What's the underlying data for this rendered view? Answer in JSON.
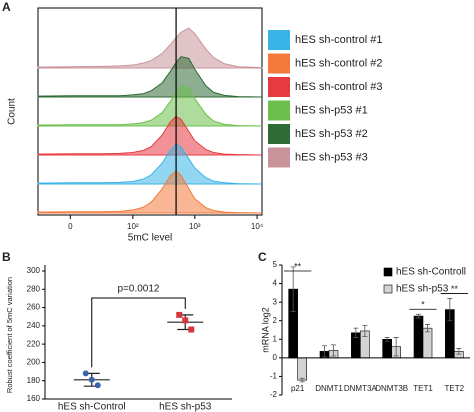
{
  "chart_data": [
    {
      "panel": "A",
      "type": "ridgeline",
      "xlabel": "5mC level",
      "ylabel": "Count",
      "xscale": "biexponential",
      "xlim": [
        -30,
        12000
      ],
      "xticks": [
        0,
        {
          "value": 100,
          "label": "10²"
        },
        {
          "value": 1000,
          "label": "10³"
        },
        {
          "value": 10000,
          "label": "10⁴"
        }
      ],
      "reference_x": 500,
      "x": [
        -30,
        0,
        30,
        60,
        100,
        150,
        200,
        300,
        400,
        500,
        600,
        800,
        1000,
        1500,
        2000,
        3000,
        5000,
        12000
      ],
      "series": [
        {
          "name": "hES sh-control #1",
          "color": "#3ab4e6",
          "values": [
            2,
            3,
            3,
            4,
            6,
            12,
            22,
            50,
            80,
            95,
            88,
            60,
            38,
            15,
            7,
            3,
            1,
            0
          ]
        },
        {
          "name": "hES sh-control #2",
          "color": "#f47a3c",
          "values": [
            2,
            3,
            3,
            4,
            7,
            14,
            26,
            58,
            88,
            100,
            90,
            58,
            34,
            13,
            6,
            2,
            1,
            0
          ]
        },
        {
          "name": "hES sh-control #3",
          "color": "#e63a40",
          "values": [
            2,
            3,
            3,
            4,
            6,
            11,
            20,
            48,
            78,
            92,
            85,
            56,
            34,
            13,
            6,
            2,
            1,
            0
          ]
        },
        {
          "name": "hES sh-p53 #1",
          "color": "#6cbf4c",
          "values": [
            2,
            3,
            3,
            3,
            5,
            8,
            14,
            32,
            58,
            80,
            95,
            90,
            65,
            28,
            12,
            4,
            1,
            0
          ]
        },
        {
          "name": "hES sh-p53 #2",
          "color": "#2f6b35",
          "values": [
            2,
            3,
            3,
            3,
            5,
            8,
            15,
            34,
            60,
            82,
            96,
            92,
            66,
            27,
            11,
            4,
            1,
            0
          ]
        },
        {
          "name": "hES sh-p53 #3",
          "color": "#c9939b",
          "values": [
            2,
            3,
            4,
            5,
            7,
            12,
            18,
            35,
            55,
            72,
            85,
            95,
            82,
            45,
            25,
            10,
            3,
            1
          ]
        }
      ],
      "legend": "right"
    },
    {
      "panel": "B",
      "type": "dot",
      "ylabel": "Robust coefficient of 5mC variation",
      "categories": [
        "hES sh-Control",
        "hES sh-p53"
      ],
      "points": [
        [
          188,
          181,
          175
        ],
        [
          252,
          246,
          236
        ]
      ],
      "means": [
        181,
        244
      ],
      "errors": [
        7,
        8
      ],
      "colors": [
        "#3a62ad",
        "#d9363a"
      ],
      "ylim": [
        160,
        300
      ],
      "yticks": [
        160,
        180,
        200,
        220,
        240,
        260,
        280,
        300
      ],
      "annotation": "p=0.0012"
    },
    {
      "panel": "C",
      "type": "bar",
      "ylabel": "mRNA log2",
      "categories": [
        "p21",
        "DNMT1",
        "DNMT3A",
        "DNMT3B",
        "TET1",
        "TET2"
      ],
      "series": [
        {
          "name": "hES sh-Controll",
          "color": "#000000",
          "values": [
            3.7,
            0.35,
            1.35,
            1.0,
            2.25,
            2.6
          ],
          "errors": [
            1.2,
            0.3,
            0.25,
            0.1,
            0.1,
            0.6
          ]
        },
        {
          "name": "hES sh-p53",
          "color": "#d3d3d3",
          "values": [
            -1.2,
            0.4,
            1.45,
            0.6,
            1.6,
            0.35
          ],
          "errors": [
            0.1,
            0.3,
            0.3,
            0.5,
            0.2,
            0.15
          ]
        }
      ],
      "ylim": [
        -2,
        5
      ],
      "yticks": [
        -2,
        -1,
        0,
        1,
        2,
        3,
        4,
        5
      ],
      "significance": [
        "**",
        null,
        null,
        null,
        "*",
        "**"
      ],
      "legend": "upper right"
    }
  ]
}
